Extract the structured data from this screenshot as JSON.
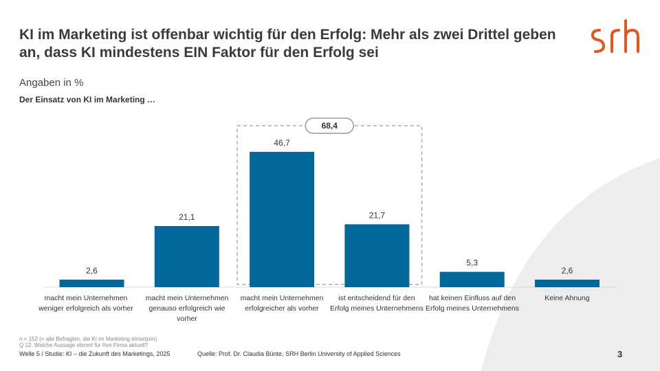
{
  "header": {
    "title": "KI im Marketing ist offenbar wichtig für den Erfolg: Mehr als zwei Drittel geben an, dass KI mindestens EIN Faktor für den Erfolg sei",
    "logo_text": "srh"
  },
  "subtitle": "Angaben in %",
  "question": "Der Einsatz von KI im Marketing …",
  "chart_data": {
    "type": "bar",
    "categories": [
      "macht mein Unternehmen weniger erfolgreich als vorher",
      "macht mein Unternehmen genauso erfolgreich wie vorher",
      "macht mein Unternehmen erfolgreicher als vorher",
      "ist entscheidend für den Erfolg meines Unternehmens",
      "hat keinen Einfluss auf den Erfolg meines Unternehmens",
      "Keine Ahnung"
    ],
    "values": [
      2.6,
      21.1,
      46.7,
      21.7,
      5.3,
      2.6
    ],
    "value_labels": [
      "2,6",
      "21,1",
      "46,7",
      "21,7",
      "5,3",
      "2,6"
    ],
    "bar_color": "#00689a",
    "ylim": [
      0,
      46.7
    ],
    "highlight": {
      "categories": [
        2,
        3
      ],
      "label": "68,4"
    }
  },
  "footer": {
    "footnote_sample": "n = 152 (= alle Befragten, die KI im Marketing einsetzen)",
    "footnote_question": "Q 12.  Welche Aussage stimmt für Ihre Firma aktuell?",
    "wave": "Welle 5 / Studie: KI – die Zukunft des Marketings, 2025",
    "source": "Quelle: Prof. Dr. Claudia Bünte, SRH Berlin University of Applied Sciences",
    "page_number": "3"
  },
  "colors": {
    "logo": "#e2561f",
    "background_arc": "#ebebeb",
    "highlight_border": "#aaaaaa"
  }
}
